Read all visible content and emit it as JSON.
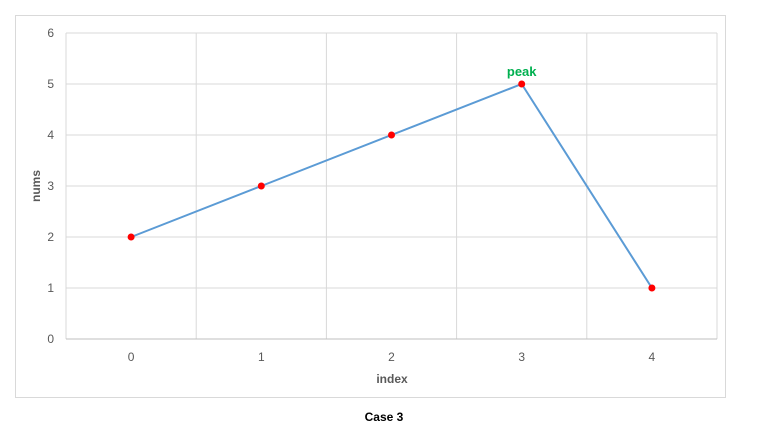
{
  "chart_data": {
    "type": "line",
    "x": [
      0,
      1,
      2,
      3,
      4
    ],
    "values": [
      2,
      3,
      4,
      5,
      1
    ],
    "xlabel": "index",
    "ylabel": "nums",
    "ylim": [
      0,
      6
    ],
    "yticks": [
      0,
      1,
      2,
      3,
      4,
      5,
      6
    ],
    "xtick_labels": [
      "0",
      "1",
      "2",
      "3",
      "4"
    ],
    "grid": true,
    "line_color": "#5b9bd5",
    "marker_color": "#ff0000",
    "annotation": {
      "text": "peak",
      "x": 3,
      "y": 5,
      "color": "#00b050"
    }
  },
  "caption": "Case 3"
}
